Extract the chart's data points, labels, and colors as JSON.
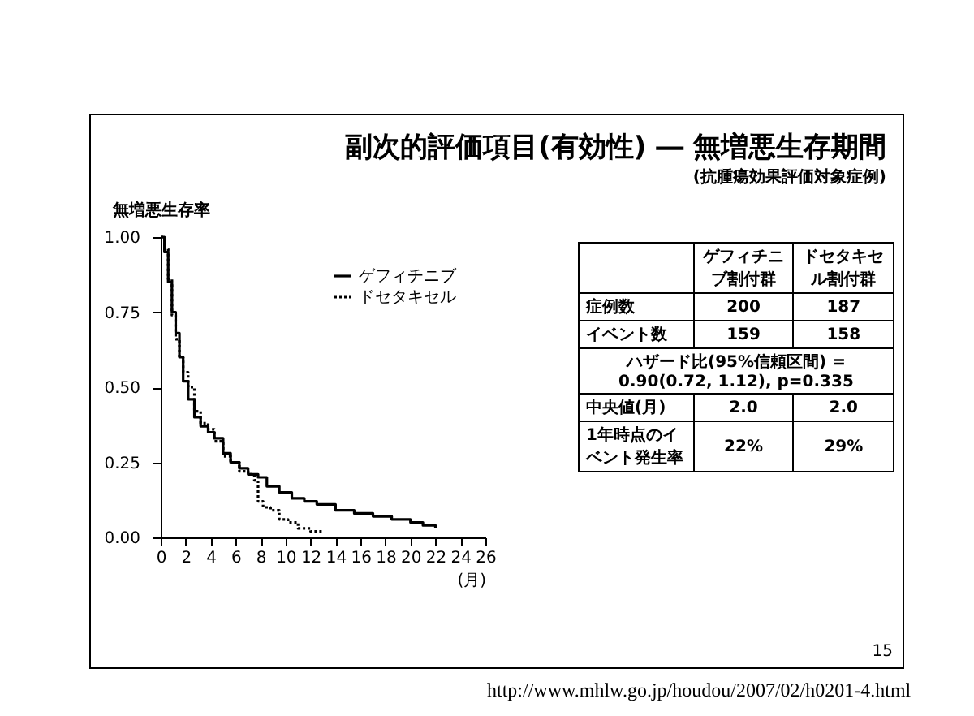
{
  "chart_data": {
    "type": "step",
    "title": "副次的評価項目(有効性) ― 無増悪生存期間",
    "subtitle": "(抗腫瘍効果評価対象症例)",
    "ylabel": "無増悪生存率",
    "xlabel": "(月)",
    "xlim": [
      0,
      26
    ],
    "xticks": [
      0,
      2,
      4,
      6,
      8,
      10,
      12,
      14,
      16,
      18,
      20,
      22,
      24,
      26
    ],
    "ylim": [
      0,
      1
    ],
    "yticks": [
      {
        "value": 0,
        "label": "0.00"
      },
      {
        "value": 0.25,
        "label": "0.25"
      },
      {
        "value": 0.5,
        "label": "0.50"
      },
      {
        "value": 0.75,
        "label": "0.75"
      },
      {
        "value": 1,
        "label": "1.00"
      }
    ],
    "legend": "top right",
    "series": [
      {
        "name": "ゲフィチニブ",
        "color": "#000000",
        "line_style": "solid",
        "x": [
          0,
          0.3,
          0.6,
          0.9,
          1.2,
          1.5,
          1.8,
          2.2,
          2.7,
          3.2,
          3.8,
          4.3,
          5,
          5.6,
          6.3,
          7,
          7.8,
          8.5,
          9.5,
          10.5,
          11.5,
          12.5,
          14,
          15.5,
          17,
          18.5,
          20,
          21,
          22
        ],
        "values": [
          1,
          0.95,
          0.85,
          0.75,
          0.68,
          0.6,
          0.52,
          0.46,
          0.4,
          0.37,
          0.35,
          0.33,
          0.28,
          0.25,
          0.23,
          0.21,
          0.2,
          0.17,
          0.15,
          0.13,
          0.12,
          0.11,
          0.09,
          0.08,
          0.07,
          0.06,
          0.05,
          0.04,
          0.03
        ]
      },
      {
        "name": "ドセタキセル",
        "color": "#000000",
        "line_style": "dotted",
        "x": [
          0,
          0.3,
          0.6,
          0.9,
          1.2,
          1.5,
          1.8,
          2.2,
          2.7,
          3.2,
          3.8,
          4.3,
          5,
          5.6,
          6.3,
          7,
          7.5,
          7.8,
          8.2,
          8.8,
          9.5,
          10.2,
          11,
          12,
          13
        ],
        "values": [
          1,
          0.96,
          0.86,
          0.74,
          0.66,
          0.6,
          0.55,
          0.5,
          0.42,
          0.38,
          0.36,
          0.32,
          0.27,
          0.25,
          0.22,
          0.21,
          0.19,
          0.12,
          0.1,
          0.09,
          0.06,
          0.05,
          0.03,
          0.02,
          0.02
        ]
      }
    ],
    "annotations": [
      "ゲフィチニブ割付群",
      "ドセタキセル割付群",
      "症例数",
      "200",
      "187",
      "イベント数",
      "159",
      "158",
      "ハザード比(95%信頼区間) = 0.90(0.72, 1.12), p=0.335",
      "中央値(月)",
      "2.0",
      "2.0",
      "1年時点のイベント発生率",
      "22%",
      "29%",
      "15",
      "http://www.mhlw.go.jp/houdou/2007/02/h0201-4.html"
    ]
  }
}
